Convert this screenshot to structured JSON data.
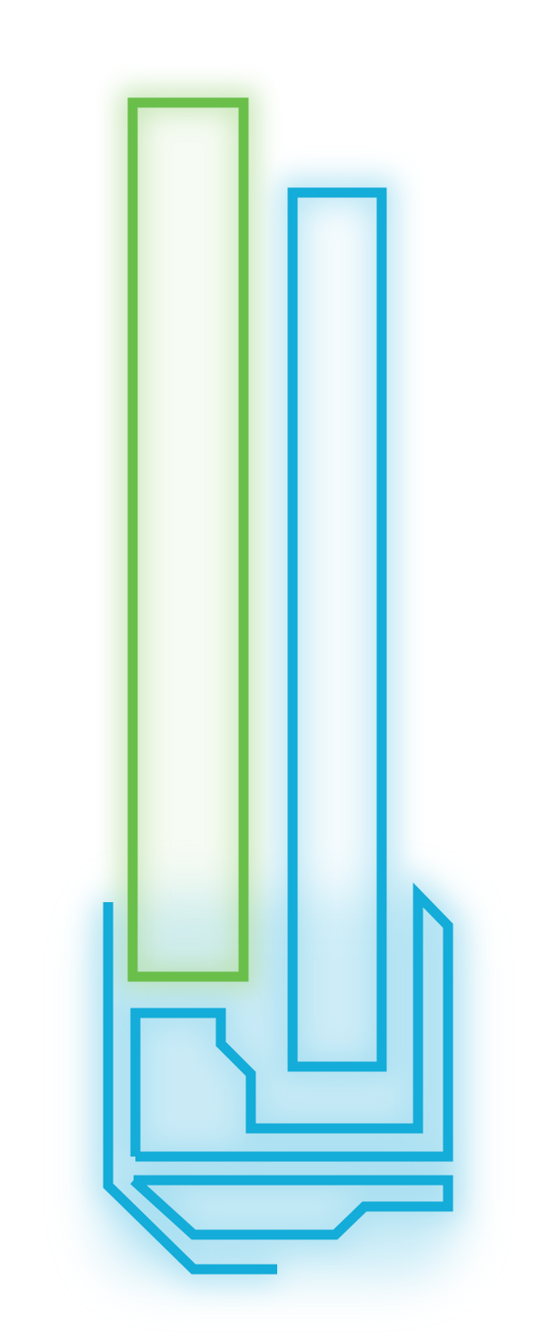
{
  "colors": {
    "background": "#ffffff",
    "green": "#6abf4b",
    "blue": "#14acd8",
    "green_glow": "#b7dfa2",
    "blue_glow": "#9fdcf0"
  },
  "shapes": {
    "green_bar": "neon-green-rectangle",
    "blue_bar": "neon-blue-rectangle",
    "circuit": "neon-blue-circuit-traces"
  }
}
